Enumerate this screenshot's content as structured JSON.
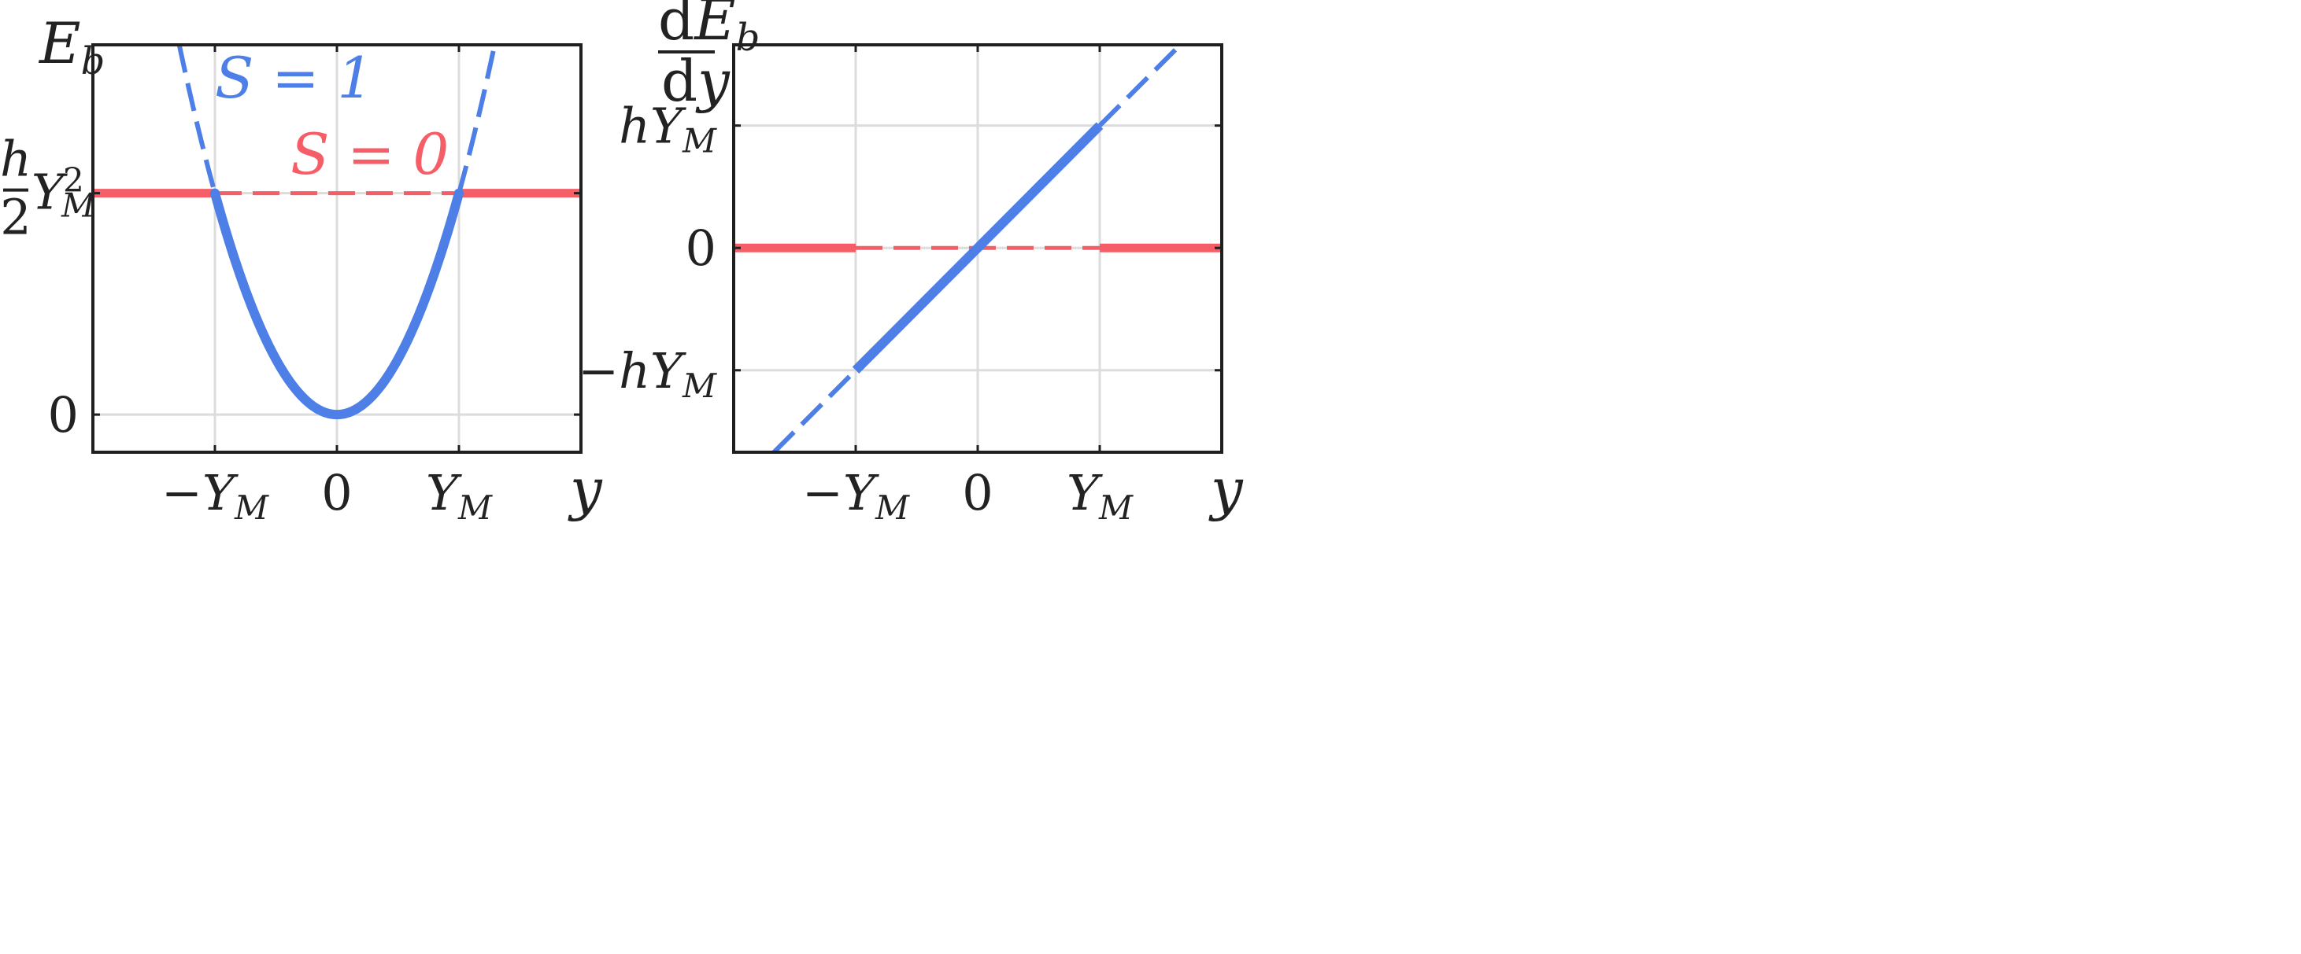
{
  "chart_data": [
    {
      "type": "line",
      "panel": "left",
      "xlabel": "y",
      "ylabel_main": "E",
      "ylabel_sub": "b",
      "x_ticks": [
        {
          "value": -1,
          "text": "−Y",
          "sub": "M"
        },
        {
          "value": 0,
          "text": "0",
          "sub": ""
        },
        {
          "value": 1,
          "text": "Y",
          "sub": "M"
        }
      ],
      "y_ticks": [
        {
          "value": 0,
          "text": "0"
        },
        {
          "value": 0.5,
          "num": "h",
          "den": "2",
          "text": "Y",
          "sup": "2",
          "sub": "M"
        }
      ],
      "xlim": [
        -2,
        2
      ],
      "ylim": [
        -0.085,
        0.835
      ],
      "grid": true,
      "series": [
        {
          "name": "S = 1",
          "label_main": "S = 1",
          "color": "#4d7fe6",
          "function": "parabola",
          "solid_range": [
            -1,
            1
          ],
          "dashed_outside": true,
          "label_at": [
            -1.0,
            0.74
          ]
        },
        {
          "name": "S = 0",
          "label_main": "S = 0",
          "color": "#f55e67",
          "function": "constant",
          "value": 0.5,
          "solid_outside": [
            -1,
            1
          ],
          "dashed_inside": true,
          "label_at": [
            -0.38,
            0.565
          ]
        }
      ]
    },
    {
      "type": "line",
      "panel": "right",
      "xlabel": "y",
      "ylabel_top": "dE",
      "ylabel_top_sub": "b",
      "ylabel_bottom": "dy",
      "x_ticks": [
        {
          "value": -1,
          "text": "−Y",
          "sub": "M"
        },
        {
          "value": 0,
          "text": "0",
          "sub": ""
        },
        {
          "value": 1,
          "text": "Y",
          "sub": "M"
        }
      ],
      "y_ticks": [
        {
          "value": -1,
          "text": "−hY",
          "sub": "M"
        },
        {
          "value": 0,
          "text": "0",
          "sub": ""
        },
        {
          "value": 1,
          "text": "hY",
          "sub": "M"
        }
      ],
      "xlim": [
        -2,
        2
      ],
      "ylim": [
        -1.67,
        1.66
      ],
      "grid": true,
      "series": [
        {
          "name": "S = 1",
          "color": "#4d7fe6",
          "function": "linear",
          "solid_range": [
            -1,
            1
          ],
          "dashed_outside": true
        },
        {
          "name": "S = 0",
          "color": "#f55e67",
          "function": "constant",
          "value": 0,
          "solid_outside": [
            -1,
            1
          ],
          "dashed_inside": true
        }
      ]
    }
  ]
}
